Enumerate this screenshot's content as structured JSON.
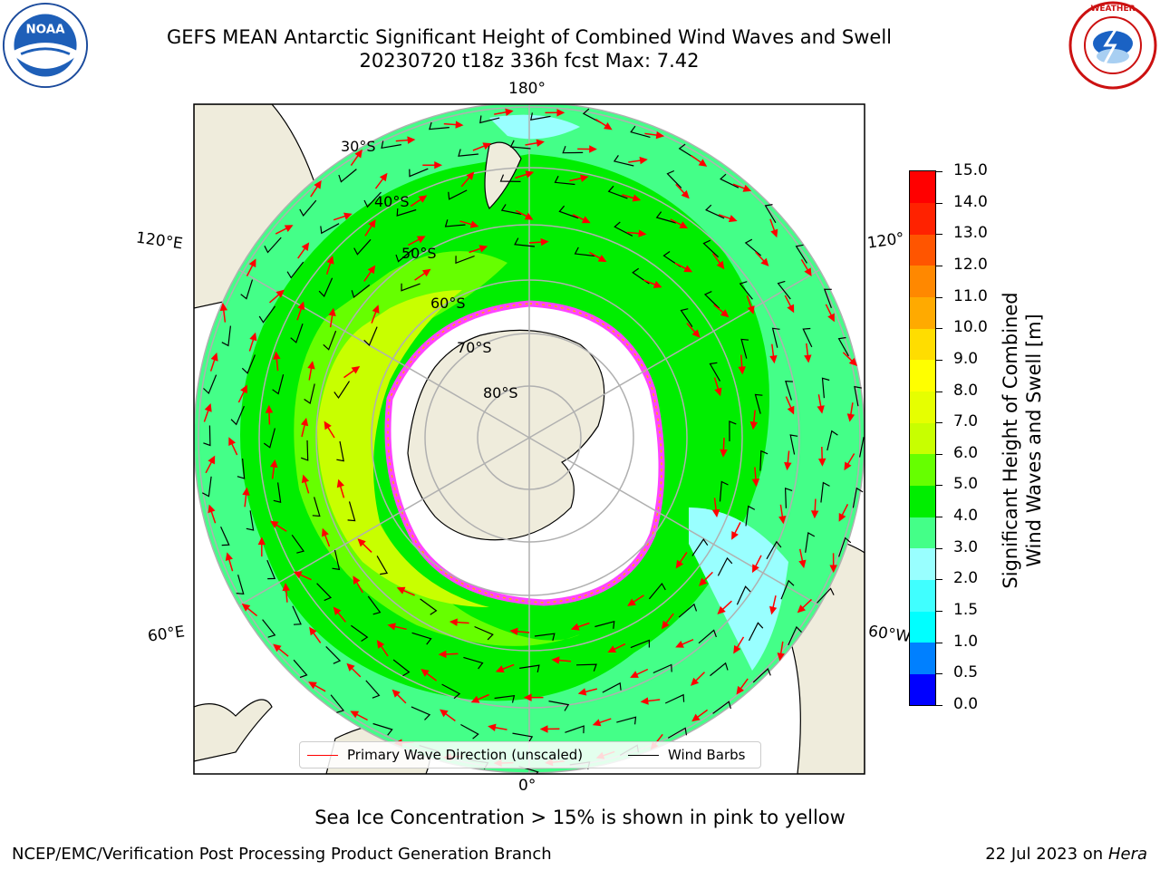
{
  "header": {
    "title_line1": "GEFS MEAN Antarctic Significant Height of Combined Wind Waves and Swell",
    "title_line2": "20230720 t18z 336h fcst   Max: 7.42"
  },
  "logos": [
    {
      "name": "NOAA",
      "ring_text": "NATIONAL OCEANIC AND ATMOSPHERIC ADMINISTRATION · U.S. DEPARTMENT OF COMMERCE"
    },
    {
      "name": "NATIONAL WEATHER SERVICE"
    }
  ],
  "map": {
    "projection": "south-polar-stereographic",
    "lon_labels": {
      "top": "180°",
      "bottom": "0°",
      "left_upper": "120°E",
      "left_lower": "60°E",
      "right_upper": "120°",
      "right_lower": "60°W"
    },
    "lat_labels": [
      "30°S",
      "40°S",
      "50°S",
      "60°S",
      "70°S",
      "80°S"
    ],
    "colors": {
      "land": "#efecdc",
      "ice": "#ffffff",
      "ice_edge": "#ff44ff"
    }
  },
  "legend": {
    "primary_wave_direction": "Primary Wave Direction (unscaled)",
    "wind_barbs": "Wind Barbs",
    "primary_color": "#ff0000",
    "barb_color": "#000000"
  },
  "colorbar": {
    "label": "Significant Height of Combined\nWind Waves and Swell [m]",
    "ticks": [
      "0.0",
      "0.5",
      "1.0",
      "1.5",
      "2.0",
      "3.0",
      "4.0",
      "5.0",
      "6.0",
      "7.0",
      "8.0",
      "9.0",
      "10.0",
      "11.0",
      "12.0",
      "13.0",
      "14.0",
      "15.0"
    ],
    "colors": [
      "#0000ff",
      "#0080ff",
      "#00ffff",
      "#40ffff",
      "#99ffff",
      "#44ff88",
      "#00ee00",
      "#66ff00",
      "#c8ff00",
      "#e6ff00",
      "#ffff00",
      "#ffdd00",
      "#ffaa00",
      "#ff8800",
      "#ff5500",
      "#ff2200",
      "#ff0000"
    ]
  },
  "sea_ice_note": "Sea Ice Concentration > 15% is shown in pink to yellow",
  "footer": {
    "left": "NCEP/EMC/Verification Post Processing Product Generation Branch",
    "right_text": "22 Jul 2023 on ",
    "right_italic": "Hera"
  }
}
